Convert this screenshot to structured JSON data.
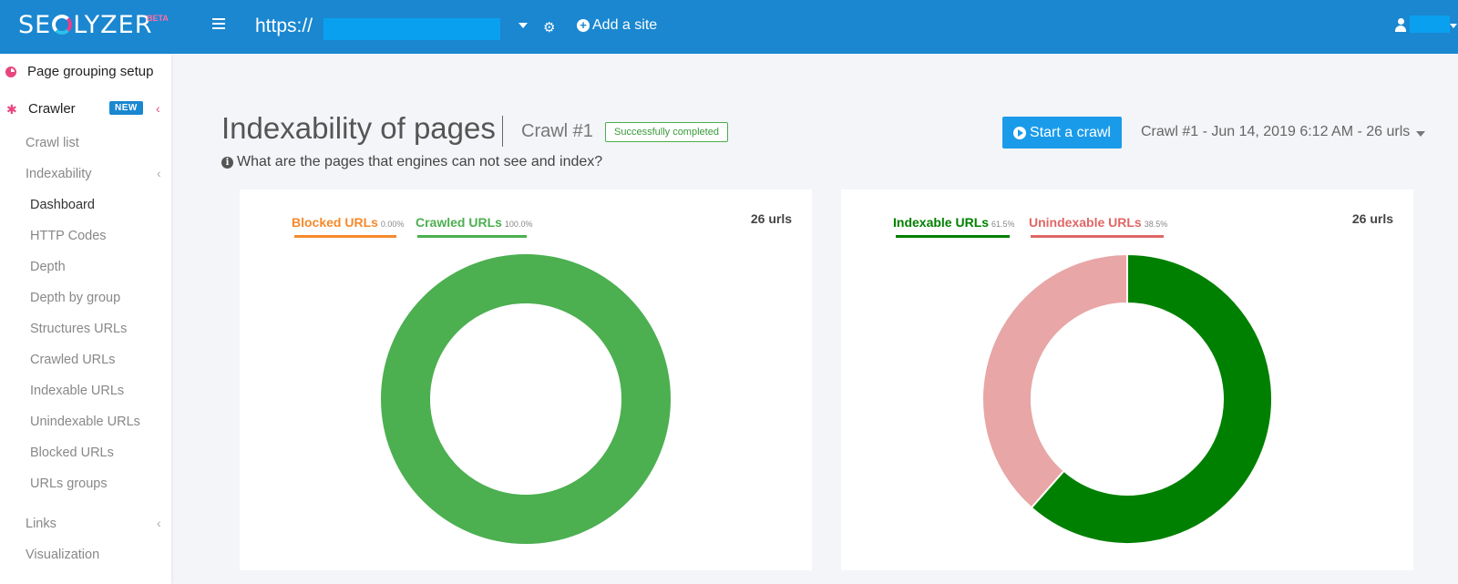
{
  "app": {
    "logo": "SEOLYZER",
    "logo_pre": "SE",
    "logo_post": "LYZER",
    "beta": "BETA",
    "url_prefix": "https://",
    "add_site": "Add a site"
  },
  "sidebar": {
    "page_grouping": "Page grouping setup",
    "crawler": "Crawler",
    "new_badge": "NEW",
    "crawl_list": "Crawl list",
    "indexability": "Indexability",
    "sub_items": [
      "Dashboard",
      "HTTP Codes",
      "Depth",
      "Depth by group",
      "Structures URLs",
      "Crawled URLs",
      "Indexable URLs",
      "Unindexable URLs",
      "Blocked URLs",
      "URLs groups"
    ],
    "links": "Links",
    "visualization": "Visualization"
  },
  "header": {
    "title": "Indexability of pages",
    "crawl_number": "Crawl #1",
    "status": "Successfully completed",
    "question": "What are the pages that engines can not see and index?",
    "start_button": "Start a crawl",
    "crawl_select": "Crawl #1 - Jun 14, 2019 6:12 AM - 26 urls"
  },
  "colors": {
    "topbar": "#1a87d0",
    "blocked": "#f58a2c",
    "crawled": "#4caf50",
    "indexable": "#008000",
    "unindexable": "#e8a6a6",
    "unindexable_label": "#e06666"
  },
  "chart_data": [
    {
      "type": "pie",
      "variant": "donut",
      "total_label": "26 urls",
      "series": [
        {
          "name": "Blocked URLs",
          "pct_label": "0.00%",
          "value": 0.0
        },
        {
          "name": "Crawled URLs",
          "pct_label": "100.0%",
          "value": 100.0
        }
      ]
    },
    {
      "type": "pie",
      "variant": "donut",
      "total_label": "26 urls",
      "series": [
        {
          "name": "Indexable URLs",
          "pct_label": "61.5%",
          "value": 61.5
        },
        {
          "name": "Unindexable URLs",
          "pct_label": "38.5%",
          "value": 38.5
        }
      ]
    }
  ]
}
